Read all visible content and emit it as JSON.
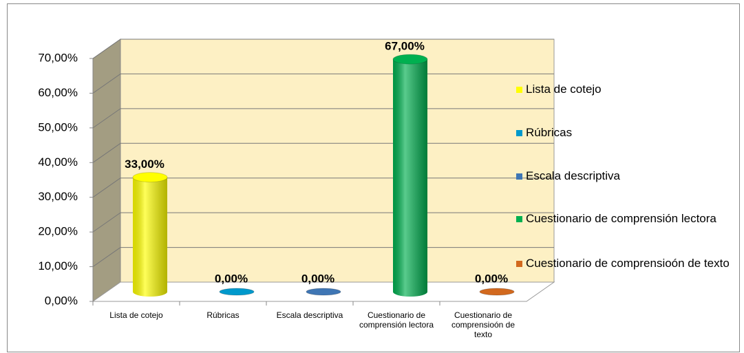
{
  "chart_data": {
    "type": "bar3d",
    "categories": [
      "Lista de cotejo",
      "Rúbricas",
      "Escala descriptiva",
      "Cuestionario de comprensión lectora",
      "Cuestionario de comprensioón de texto"
    ],
    "values": [
      33,
      0,
      0,
      67,
      0
    ],
    "value_labels": [
      "33,00%",
      "0,00%",
      "0,00%",
      "67,00%",
      "0,00%"
    ],
    "colors": [
      "#ffff00",
      "#0099cc",
      "#3f76b4",
      "#00b050",
      "#d2691e"
    ],
    "ylim": [
      0,
      70
    ],
    "yticks": [
      {
        "value": 0,
        "label": "0,00%"
      },
      {
        "value": 10,
        "label": "10,00%"
      },
      {
        "value": 20,
        "label": "20,00%"
      },
      {
        "value": 30,
        "label": "30,00%"
      },
      {
        "value": 40,
        "label": "40,00%"
      },
      {
        "value": 50,
        "label": "50,00%"
      },
      {
        "value": 60,
        "label": "60,00%"
      },
      {
        "value": 70,
        "label": "70,00%"
      }
    ],
    "grid": true
  }
}
